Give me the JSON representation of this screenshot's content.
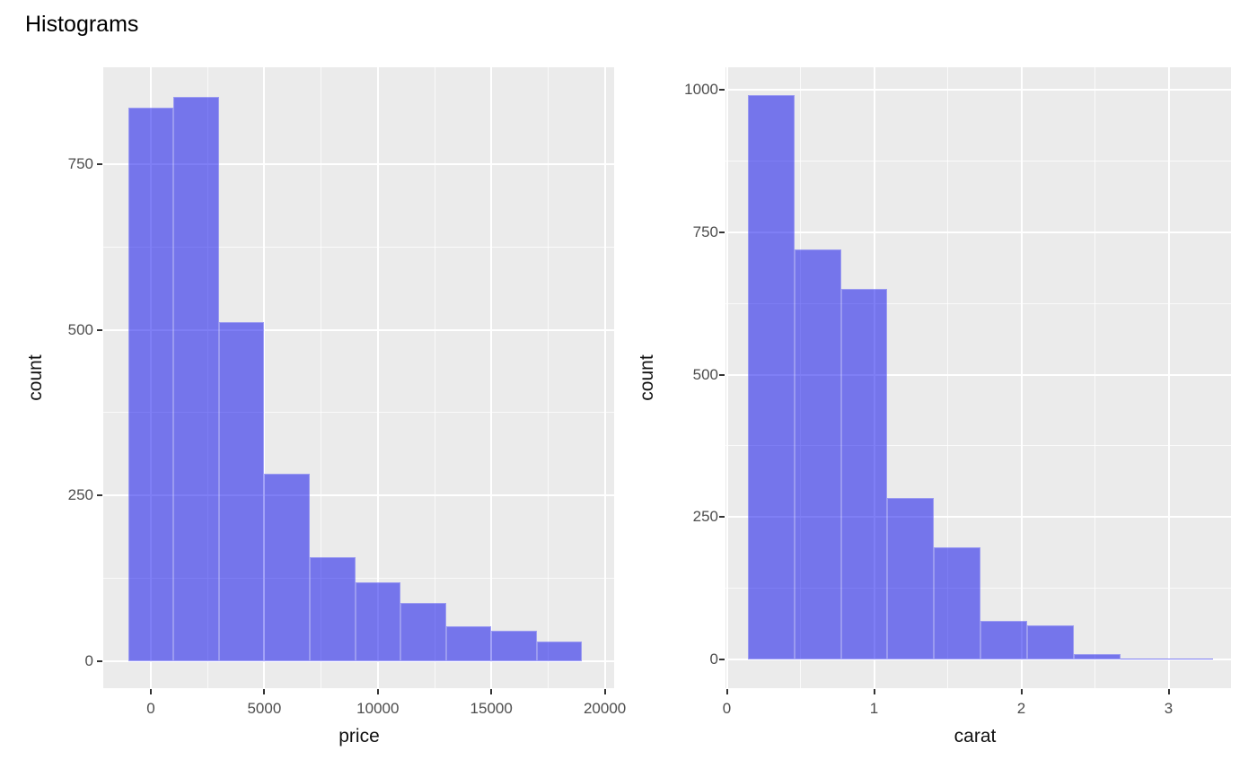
{
  "page_title": "Histograms",
  "figure": {
    "background": "#FFFFFF",
    "panel_background": "#EBEBEB",
    "grid_color": "#FFFFFF",
    "bar_fill": "rgba(10,10,235,0.52)",
    "bar_edge": "rgba(255,255,255,0.28)",
    "tick_label_color": "#4D4D4D",
    "tick_mark_color": "#333333",
    "axis_title_color": "#111111",
    "title_color": "#000000"
  },
  "chart_data": [
    {
      "type": "bar",
      "name": "price-histogram",
      "title": "",
      "xlabel": "price",
      "ylabel": "count",
      "bin_edges": [
        -1000,
        1000,
        3000,
        5000,
        7000,
        9000,
        11000,
        13000,
        15000,
        17000,
        19000
      ],
      "counts": [
        835,
        851,
        512,
        283,
        157,
        119,
        88,
        53,
        46,
        30
      ],
      "x_ticks": [
        0,
        5000,
        10000,
        15000,
        20000
      ],
      "x_tick_labels": [
        "0",
        "5000",
        "10000",
        "15000",
        "20000"
      ],
      "x_minor_ticks": [
        2500,
        7500,
        12500,
        17500
      ],
      "y_ticks": [
        0,
        250,
        500,
        750
      ],
      "y_tick_labels": [
        "0",
        "250",
        "500",
        "750"
      ],
      "y_minor_ticks": [
        125,
        375,
        625
      ],
      "xlim": [
        -2100,
        20400
      ],
      "ylim": [
        0,
        896
      ],
      "grid": "major+minor",
      "legend": false
    },
    {
      "type": "bar",
      "name": "carat-histogram",
      "title": "",
      "xlabel": "carat",
      "ylabel": "count",
      "bin_edges": [
        0.143,
        0.459,
        0.775,
        1.091,
        1.407,
        1.723,
        2.039,
        2.355,
        2.671,
        2.987,
        3.303
      ],
      "counts": [
        990,
        720,
        650,
        283,
        197,
        67,
        60,
        9,
        2,
        1
      ],
      "x_ticks": [
        0,
        1,
        2,
        3
      ],
      "x_tick_labels": [
        "0",
        "1",
        "2",
        "3"
      ],
      "x_minor_ticks": [
        0.5,
        1.5,
        2.5,
        3.5
      ],
      "y_ticks": [
        0,
        250,
        500,
        750,
        1000
      ],
      "y_tick_labels": [
        "0",
        "250",
        "500",
        "750",
        "1000"
      ],
      "y_minor_ticks": [
        125,
        375,
        625,
        875
      ],
      "xlim": [
        -0.01,
        3.42
      ],
      "ylim": [
        0,
        1039
      ],
      "grid": "major+minor",
      "legend": false
    }
  ]
}
